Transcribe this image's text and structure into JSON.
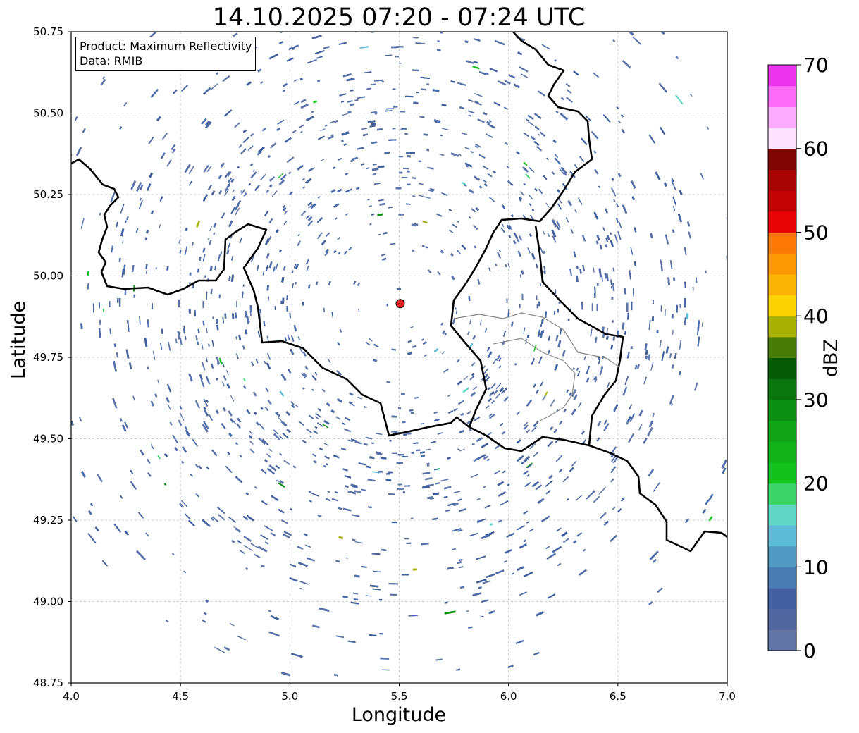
{
  "title": "14.10.2025 07:20 - 07:24 UTC",
  "info_box": {
    "product_line": "Product: Maximum Reflectivity",
    "data_line": "Data: RMIB"
  },
  "chart_data": {
    "type": "heatmap",
    "title": "14.10.2025 07:20 - 07:24 UTC",
    "xlabel": "Longitude",
    "ylabel": "Latitude",
    "xlim": [
      4.0,
      7.0
    ],
    "ylim": [
      48.75,
      50.75
    ],
    "x_ticks": [
      "4.0",
      "4.5",
      "5.0",
      "5.5",
      "6.0",
      "6.5",
      "7.0"
    ],
    "y_ticks": [
      "48.75",
      "49.00",
      "49.25",
      "49.50",
      "49.75",
      "50.00",
      "50.25",
      "50.50",
      "50.75"
    ],
    "grid": true,
    "radar_site": {
      "lon": 5.505,
      "lat": 49.915,
      "color": "#e02020"
    },
    "colorbar": {
      "label": "dBZ",
      "min": 0,
      "max": 70,
      "ticks": [
        "0",
        "10",
        "20",
        "30",
        "40",
        "50",
        "60",
        "70"
      ],
      "colors": [
        "#6275a6",
        "#51669e",
        "#4460a2",
        "#4a7cb4",
        "#5199c2",
        "#5cbcd8",
        "#60d7c6",
        "#3bd46a",
        "#14c21e",
        "#12b21a",
        "#10a416",
        "#0c8e12",
        "#08760c",
        "#045a06",
        "#487a06",
        "#a8b004",
        "#fcd404",
        "#fcb404",
        "#fc9804",
        "#fc7804",
        "#e80404",
        "#c00404",
        "#a80404",
        "#800404",
        "#fde0fd",
        "#fcacfc",
        "#fc6cf8",
        "#ec34ec"
      ]
    }
  }
}
